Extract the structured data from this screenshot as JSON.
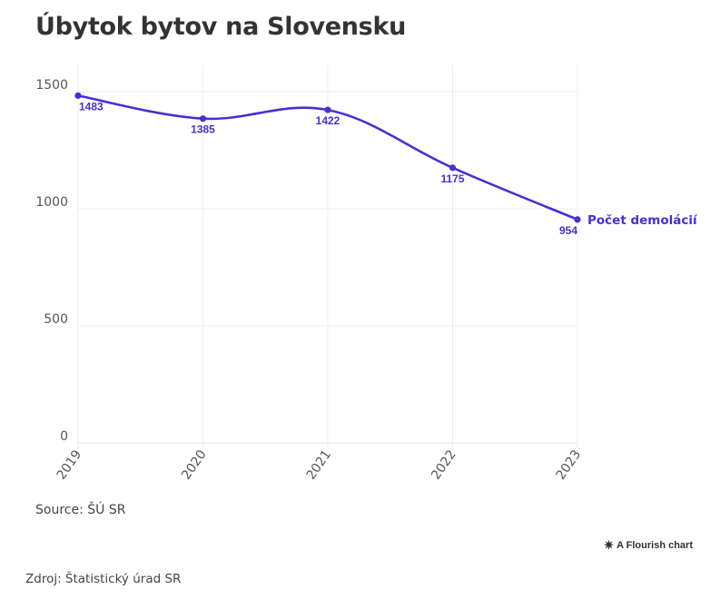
{
  "title": "Úbytok bytov na Slovensku",
  "source": "Source: ŠÚ SR",
  "credit": "A Flourish chart",
  "credit_icon": "flourish-logo-icon",
  "footer_source": "Zdroj: Štatistický úrad SR",
  "chart_data": {
    "type": "line",
    "x": [
      "2019",
      "2020",
      "2021",
      "2022",
      "2023"
    ],
    "series": [
      {
        "name": "Počet demolácií",
        "values": [
          1483,
          1385,
          1422,
          1175,
          954
        ],
        "color": "#4b2ed1"
      }
    ],
    "ylim": [
      0,
      1500
    ],
    "yticks": [
      0,
      500,
      1000,
      1500
    ],
    "ytick_labels": [
      "0",
      "500",
      "1000",
      "1500"
    ],
    "xlabel": "",
    "ylabel": "",
    "grid": true,
    "data_labels": true,
    "series_label_placement": "end-of-line"
  }
}
